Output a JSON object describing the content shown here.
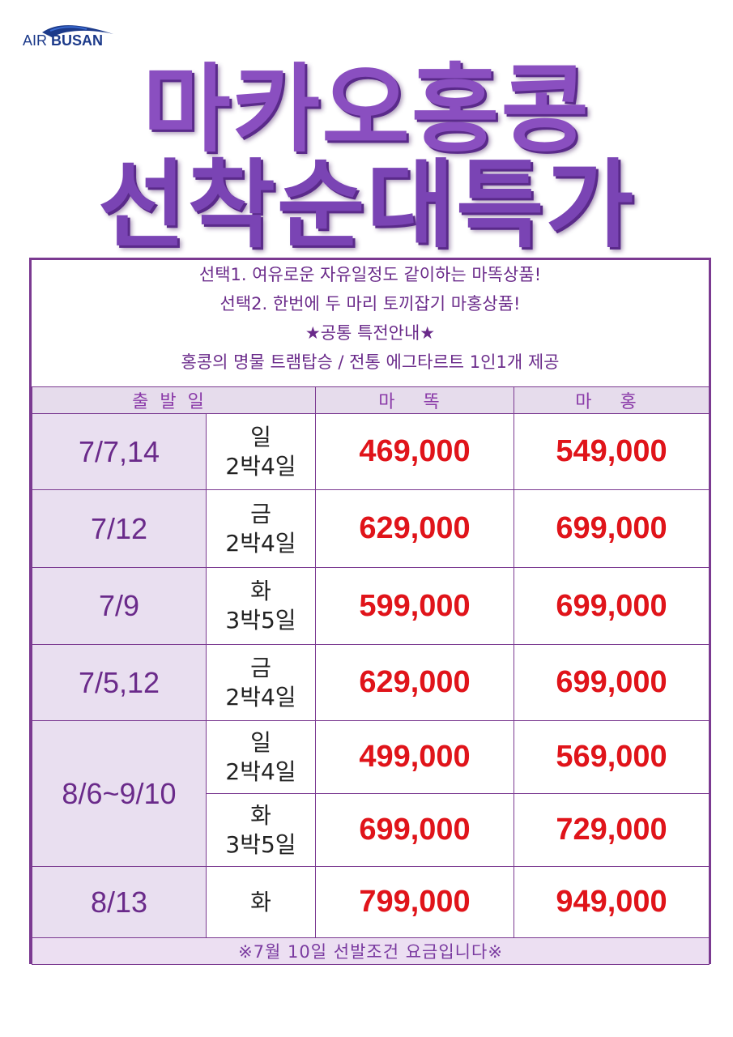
{
  "logo": {
    "text_air": "AIR",
    "text_busan": "BUSAN",
    "brand_color": "#1c3a8a"
  },
  "title": {
    "line1": "마카오홍콩",
    "line2": "선착순대특가"
  },
  "intro": {
    "line1": "선택1. 여유로운 자유일정도 같이하는 마똑상품!",
    "line2": "선택2. 한번에 두 마리 토끼잡기 마홍상품!",
    "line3": "★공통 특전안내★",
    "line4": "홍콩의 명물 트램탑승 / 전통 에그타르트 1인1개 제공"
  },
  "table": {
    "headers": {
      "departure": "출발일",
      "mattok": "마 똑",
      "mahong": "마 홍"
    },
    "rows": [
      {
        "date": "7/7,14",
        "day": "일",
        "duration": "2박4일",
        "mattok": "469,000",
        "mahong": "549,000"
      },
      {
        "date": "7/12",
        "day": "금",
        "duration": "2박4일",
        "mattok": "629,000",
        "mahong": "699,000"
      },
      {
        "date": "7/9",
        "day": "화",
        "duration": "3박5일",
        "mattok": "599,000",
        "mahong": "699,000"
      },
      {
        "date": "7/5,12",
        "day": "금",
        "duration": "2박4일",
        "mattok": "629,000",
        "mahong": "699,000"
      },
      {
        "date": "8/6~9/10",
        "day": "일",
        "duration": "2박4일",
        "mattok": "499,000",
        "mahong": "569,000"
      },
      {
        "date": "",
        "day": "화",
        "duration": "3박5일",
        "mattok": "699,000",
        "mahong": "729,000"
      },
      {
        "date": "8/13",
        "day": "화",
        "duration": "",
        "mattok": "799,000",
        "mahong": "949,000"
      }
    ],
    "footer": "※7월 10일 선발조건 요금입니다※"
  },
  "colors": {
    "accent": "#7b3a91",
    "price": "#e0141a",
    "title": "#8a4fc0"
  }
}
